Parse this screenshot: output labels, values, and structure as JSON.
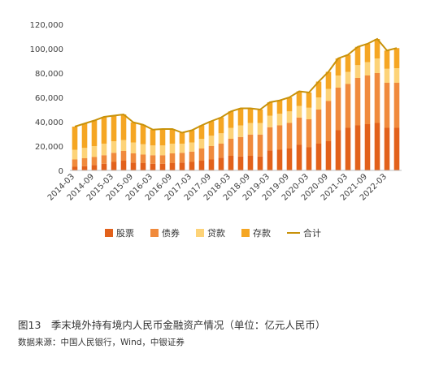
{
  "caption": "图13　季末境外持有境内人民币金融资产情况（单位：亿元人民币）",
  "source": "数据来源：中国人民银行，Wind，中银证券",
  "chart_data": {
    "type": "bar",
    "stacked": true,
    "title": "",
    "xlabel": "",
    "ylabel": "",
    "ylim": [
      0,
      120000
    ],
    "yticks": [
      "0",
      "20,000",
      "40,000",
      "60,000",
      "80,000",
      "100,000",
      "120,000"
    ],
    "yticks_values": [
      0,
      20000,
      40000,
      60000,
      80000,
      100000,
      120000
    ],
    "grid": false,
    "legend_position": "bottom",
    "x": [
      "2014-03",
      "2014-06",
      "2014-09",
      "2014-12",
      "2015-03",
      "2015-06",
      "2015-09",
      "2015-12",
      "2016-03",
      "2016-06",
      "2016-09",
      "2016-12",
      "2017-03",
      "2017-06",
      "2017-09",
      "2017-12",
      "2018-03",
      "2018-06",
      "2018-09",
      "2018-12",
      "2019-03",
      "2019-06",
      "2019-09",
      "2019-12",
      "2020-03",
      "2020-06",
      "2020-09",
      "2020-12",
      "2021-03",
      "2021-06",
      "2021-09",
      "2021-12",
      "2022-03",
      "2022-06"
    ],
    "xtick_labels": [
      "2014-03",
      "2014-09",
      "2015-03",
      "2015-09",
      "2016-03",
      "2016-09",
      "2017-03",
      "2017-09",
      "2018-03",
      "2018-09",
      "2019-03",
      "2019-09",
      "2020-03",
      "2020-09",
      "2021-03",
      "2021-09",
      "2022-03"
    ],
    "series": [
      {
        "name": "股票",
        "color": "#e2611b",
        "values": [
          3000,
          3500,
          4500,
          5500,
          7000,
          8000,
          6500,
          6000,
          5500,
          5500,
          6000,
          6500,
          7000,
          8000,
          9000,
          10500,
          12000,
          11500,
          12000,
          11500,
          16500,
          17000,
          18000,
          21000,
          19000,
          22000,
          24000,
          33000,
          35000,
          37000,
          38000,
          39000,
          35000,
          35000
        ]
      },
      {
        "name": "债券",
        "color": "#f08a3c",
        "values": [
          6000,
          6500,
          6500,
          7000,
          7500,
          8000,
          7500,
          7000,
          7000,
          7000,
          8000,
          8000,
          8500,
          10000,
          11000,
          11500,
          14000,
          16000,
          17500,
          18000,
          19000,
          20000,
          21000,
          22500,
          23000,
          28000,
          33000,
          35000,
          36000,
          39000,
          40000,
          41000,
          37000,
          37000
        ]
      },
      {
        "name": "贷款",
        "color": "#fdd378",
        "values": [
          8000,
          8500,
          9000,
          9500,
          9500,
          9000,
          9000,
          8500,
          8000,
          8000,
          8000,
          7500,
          7500,
          8000,
          8500,
          8500,
          9000,
          9500,
          9500,
          9500,
          9500,
          9500,
          9500,
          9500,
          9500,
          10000,
          10000,
          10000,
          10000,
          10500,
          11000,
          12000,
          11500,
          12000
        ]
      },
      {
        "name": "存款",
        "color": "#f5a623",
        "values": [
          19000,
          20000,
          21000,
          22000,
          21000,
          21000,
          16500,
          16000,
          13000,
          13500,
          12000,
          9000,
          10000,
          11000,
          12000,
          13000,
          13500,
          14000,
          12000,
          11000,
          11000,
          11000,
          11500,
          12000,
          12500,
          13000,
          14000,
          14000,
          14000,
          15000,
          15000,
          16000,
          15000,
          16500
        ]
      }
    ],
    "total": {
      "name": "合计",
      "color": "#c8920a",
      "values": [
        36000,
        38500,
        41000,
        44000,
        45000,
        46000,
        39500,
        37500,
        33500,
        34000,
        34000,
        31000,
        33000,
        37000,
        40500,
        43500,
        48500,
        51000,
        51000,
        50000,
        56000,
        57500,
        60000,
        65000,
        64000,
        73000,
        81000,
        92000,
        95000,
        101500,
        104000,
        108000,
        98500,
        100500
      ]
    }
  }
}
